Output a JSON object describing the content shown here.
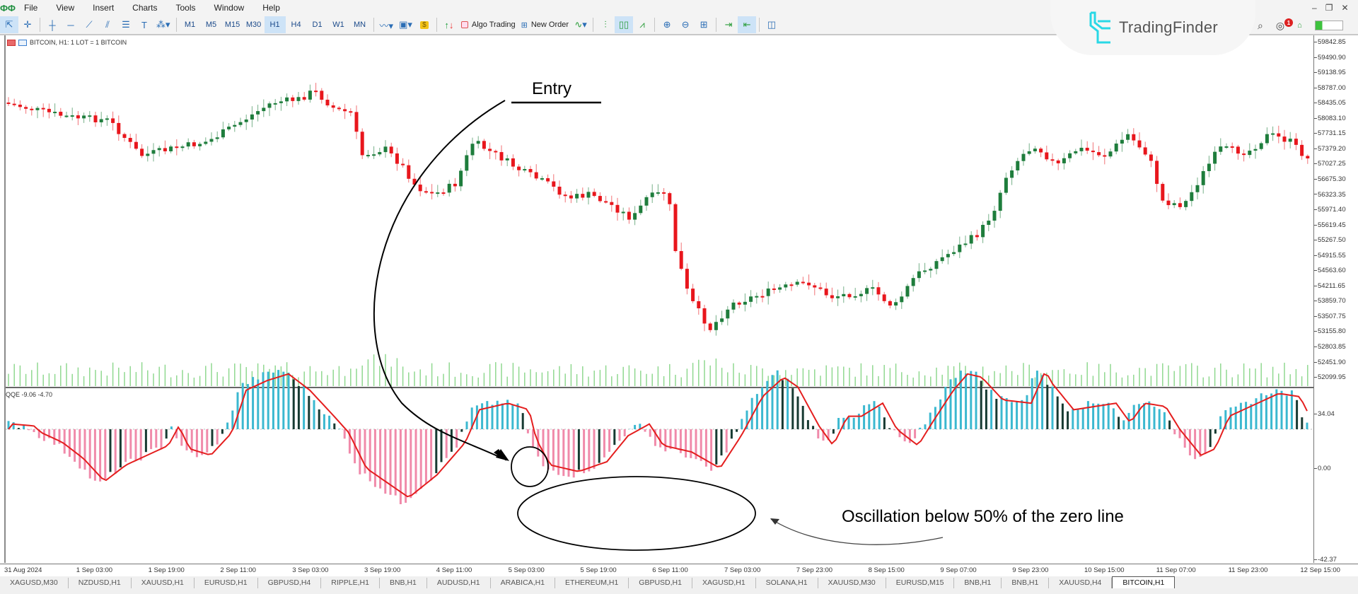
{
  "menubar": {
    "items": [
      "File",
      "View",
      "Insert",
      "Charts",
      "Tools",
      "Window",
      "Help"
    ]
  },
  "toolbar": {
    "timeframes": [
      "M1",
      "M5",
      "M15",
      "M30",
      "H1",
      "H4",
      "D1",
      "W1",
      "MN"
    ],
    "active_timeframe": "H1",
    "algo_trading_label": "Algo Trading",
    "new_order_label": "New Order"
  },
  "branding": {
    "name": "TradingFinder"
  },
  "notifications": {
    "count": "1"
  },
  "chart": {
    "info": "BITCOIN, H1:  1 LOT = 1 BITCOIN",
    "indicator_label": "QQE -9.06 -4.70",
    "price_axis": [
      "59842.85",
      "59490.90",
      "59138.95",
      "58787.00",
      "58435.05",
      "58083.10",
      "57731.15",
      "57379.20",
      "57027.25",
      "56675.30",
      "56323.35",
      "55971.40",
      "55619.45",
      "55267.50",
      "54915.55",
      "54563.60",
      "54211.65",
      "53859.70",
      "53507.75",
      "53155.80",
      "52803.85",
      "52451.90",
      "52099.95"
    ],
    "indicator_axis": {
      "top": "34.04",
      "zero": "0.00",
      "bottom": "-42.37"
    },
    "time_axis": [
      "31 Aug 2024",
      "1 Sep 03:00",
      "1 Sep 19:00",
      "2 Sep 11:00",
      "3 Sep 03:00",
      "3 Sep 19:00",
      "4 Sep 11:00",
      "5 Sep 03:00",
      "5 Sep 19:00",
      "6 Sep 11:00",
      "7 Sep 03:00",
      "7 Sep 23:00",
      "8 Sep 15:00",
      "9 Sep 07:00",
      "9 Sep 23:00",
      "10 Sep 15:00",
      "11 Sep 07:00",
      "11 Sep 23:00",
      "12 Sep 15:00"
    ],
    "colors": {
      "bull": "#1e7d3c",
      "bear": "#e8161c",
      "volume": "#90d890",
      "qqe_up": "#3bb8d0",
      "qqe_down": "#f08aaa",
      "qqe_neutral": "#173a32",
      "qqe_line": "#e41e1e"
    }
  },
  "annotations": {
    "entry": "Entry",
    "oscillation": "Oscillation below 50% of the zero line"
  },
  "tabs": [
    "XAGUSD,M30",
    "NZDUSD,H1",
    "XAUUSD,H1",
    "EURUSD,H1",
    "GBPUSD,H4",
    "RIPPLE,H1",
    "BNB,H1",
    "AUDUSD,H1",
    "ARABICA,H1",
    "ETHEREUM,H1",
    "GBPUSD,H1",
    "XAGUSD,H1",
    "SOLANA,H1",
    "XAUUSD,M30",
    "EURUSD,M15",
    "BNB,H1",
    "BNB,H1",
    "XAUUSD,H4",
    "BITCOIN,H1"
  ],
  "active_tab": "BITCOIN,H1"
}
